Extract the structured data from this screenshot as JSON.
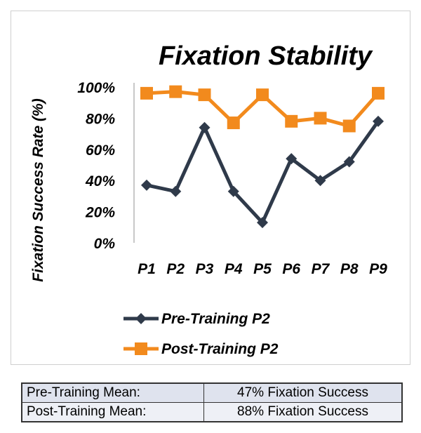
{
  "chart_data": {
    "type": "line",
    "title": "Fixation Stability",
    "xlabel": "",
    "ylabel": "Fixation Success Rate (%)",
    "categories": [
      "P1",
      "P2",
      "P3",
      "P4",
      "P5",
      "P6",
      "P7",
      "P8",
      "P9"
    ],
    "ylim": [
      0,
      100
    ],
    "yticks": [
      "0%",
      "20%",
      "40%",
      "60%",
      "80%",
      "100%"
    ],
    "grid": false,
    "legend_position": "bottom",
    "series": [
      {
        "name": "Pre-Training P2",
        "color": "#2f3a4a",
        "marker": "diamond",
        "values": [
          37,
          33,
          74,
          33,
          13,
          54,
          40,
          52,
          78
        ]
      },
      {
        "name": "Post-Training P2",
        "color": "#f28a1d",
        "marker": "square",
        "values": [
          96,
          97,
          95,
          77,
          95,
          78,
          80,
          75,
          96
        ]
      }
    ]
  },
  "summary": {
    "rows": [
      {
        "label": "Pre-Training Mean:",
        "value": "47% Fixation Success"
      },
      {
        "label": "Post-Training Mean:",
        "value": "88% Fixation Success"
      }
    ]
  }
}
